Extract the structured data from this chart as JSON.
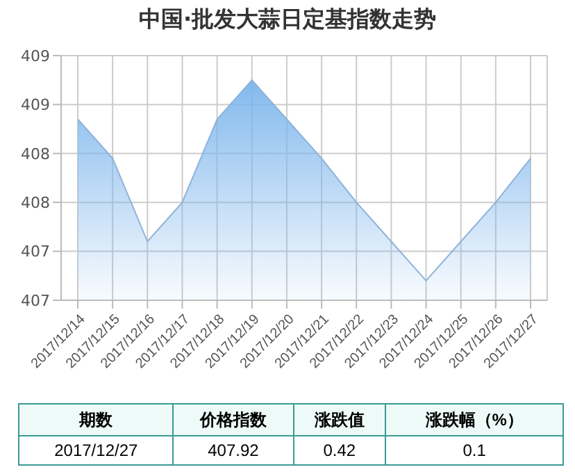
{
  "chart_data": {
    "type": "area",
    "title": "中国·批发大蒜日定基指数走势",
    "categories": [
      "2017/12/14",
      "2017/12/15",
      "2017/12/16",
      "2017/12/17",
      "2017/12/18",
      "2017/12/19",
      "2017/12/20",
      "2017/12/21",
      "2017/12/22",
      "2017/12/23",
      "2017/12/24",
      "2017/12/25",
      "2017/12/26",
      "2017/12/27"
    ],
    "series": [
      {
        "color": "#7cb5ec",
        "values": [
          408.85,
          408.45,
          407.6,
          408.0,
          408.85,
          409.25,
          408.85,
          408.45,
          408.0,
          407.6,
          407.2,
          407.6,
          408.0,
          408.45
        ]
      }
    ],
    "ylim": [
      407,
      409.5
    ],
    "yticks": [
      {
        "value": 407,
        "label": "407"
      },
      {
        "value": 407.5,
        "label": "407"
      },
      {
        "value": 408,
        "label": "408"
      },
      {
        "value": 408.5,
        "label": "408"
      },
      {
        "value": 409,
        "label": "409"
      },
      {
        "value": 409.5,
        "label": "409"
      }
    ],
    "grid": true,
    "annotations": [
      "期数",
      "价格指数",
      "涨跌值",
      "涨跌幅（%）",
      "2017/12/27",
      "407.92",
      "0.42",
      "0.1"
    ]
  }
}
